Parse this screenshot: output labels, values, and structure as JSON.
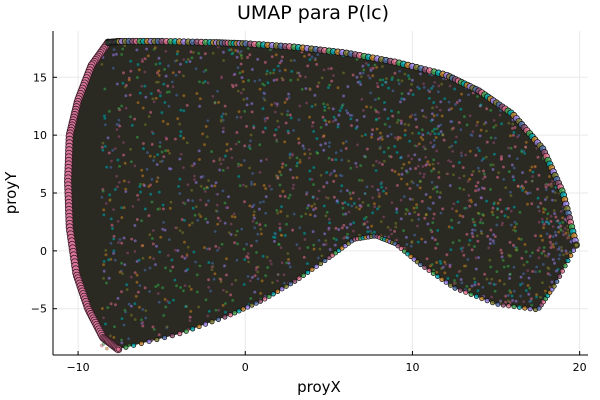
{
  "chart_data": {
    "type": "scatter",
    "title": "UMAP para P(lc)",
    "xlabel": "proyX",
    "ylabel": "proyY",
    "xlim": [
      -11.5,
      20.5
    ],
    "ylim": [
      -9,
      19
    ],
    "xticks": [
      -10,
      0,
      10,
      20
    ],
    "yticks": [
      -5,
      0,
      5,
      10,
      15
    ],
    "grid": true,
    "legend": "none",
    "marker": "circle",
    "marker_edge_color": "#000000",
    "palette": [
      "#e26f8f",
      "#3da44d",
      "#00a9ad",
      "#c68225",
      "#9b7fe9",
      "#7a7a30",
      "#4c6ea8",
      "#8f4c6f"
    ],
    "shape_outline": {
      "top_edge": [
        [
          -8.2,
          18.0
        ],
        [
          -7.5,
          18.1
        ],
        [
          -5,
          18.1
        ],
        [
          -2,
          18.0
        ],
        [
          0,
          17.9
        ],
        [
          3,
          17.6
        ],
        [
          6,
          17.1
        ],
        [
          9,
          16.3
        ],
        [
          12,
          15.2
        ],
        [
          14,
          13.8
        ],
        [
          16,
          11.8
        ],
        [
          17.8,
          8.8
        ],
        [
          19.0,
          5.0
        ],
        [
          19.8,
          0.5
        ]
      ],
      "left_edge": [
        [
          -8.2,
          18.0
        ],
        [
          -9.2,
          16.0
        ],
        [
          -10.0,
          13.0
        ],
        [
          -10.5,
          10.0
        ],
        [
          -10.6,
          6.0
        ],
        [
          -10.5,
          2.0
        ],
        [
          -10.1,
          -2.0
        ],
        [
          -9.4,
          -5.0
        ],
        [
          -8.5,
          -7.5
        ],
        [
          -7.6,
          -8.5
        ]
      ],
      "bottom_edge": [
        [
          -7.6,
          -8.5
        ],
        [
          -4,
          -7.2
        ],
        [
          -1,
          -5.6
        ],
        [
          1,
          -4.3
        ],
        [
          3,
          -2.6
        ],
        [
          5,
          -0.6
        ],
        [
          6.5,
          1.0
        ],
        [
          7.8,
          1.3
        ],
        [
          9,
          0.6
        ],
        [
          10.5,
          -1.2
        ],
        [
          12.5,
          -3.2
        ],
        [
          15,
          -4.6
        ],
        [
          17.5,
          -5.1
        ],
        [
          18.5,
          -3.0
        ],
        [
          19.8,
          0.5
        ]
      ]
    }
  }
}
